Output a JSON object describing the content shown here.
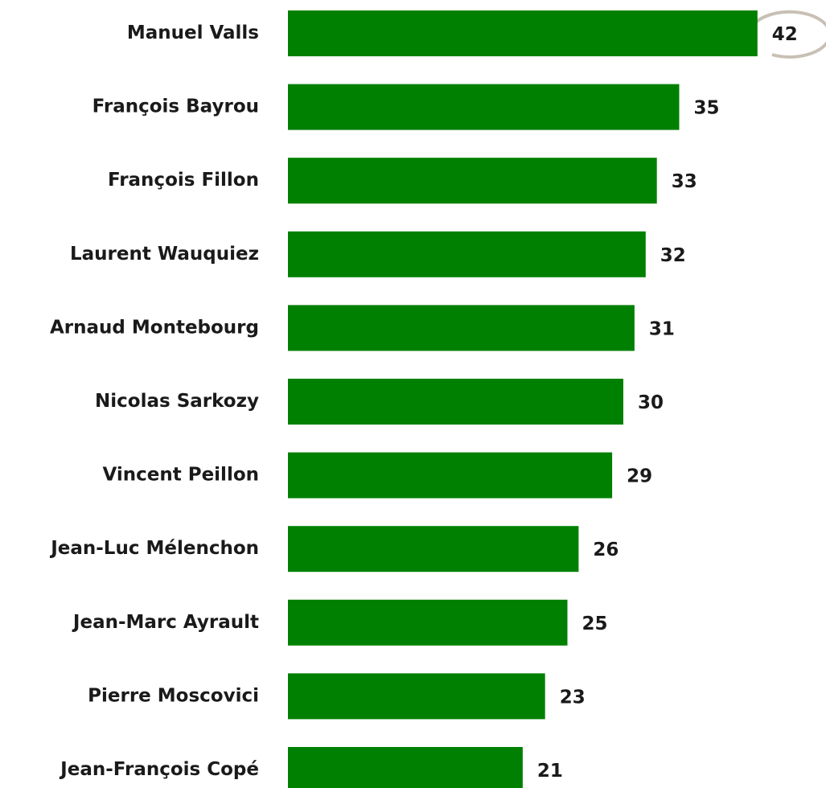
{
  "chart_data": {
    "type": "bar",
    "orientation": "horizontal",
    "categories": [
      "Manuel Valls",
      "François Bayrou",
      "François Fillon",
      "Laurent Wauquiez",
      "Arnaud Montebourg",
      "Nicolas Sarkozy",
      "Vincent Peillon",
      "Jean-Luc Mélenchon",
      "Jean-Marc Ayrault",
      "Pierre Moscovici",
      "Jean-François Copé"
    ],
    "values": [
      42,
      35,
      33,
      32,
      31,
      30,
      29,
      26,
      25,
      23,
      21
    ],
    "color": "#008000"
  }
}
